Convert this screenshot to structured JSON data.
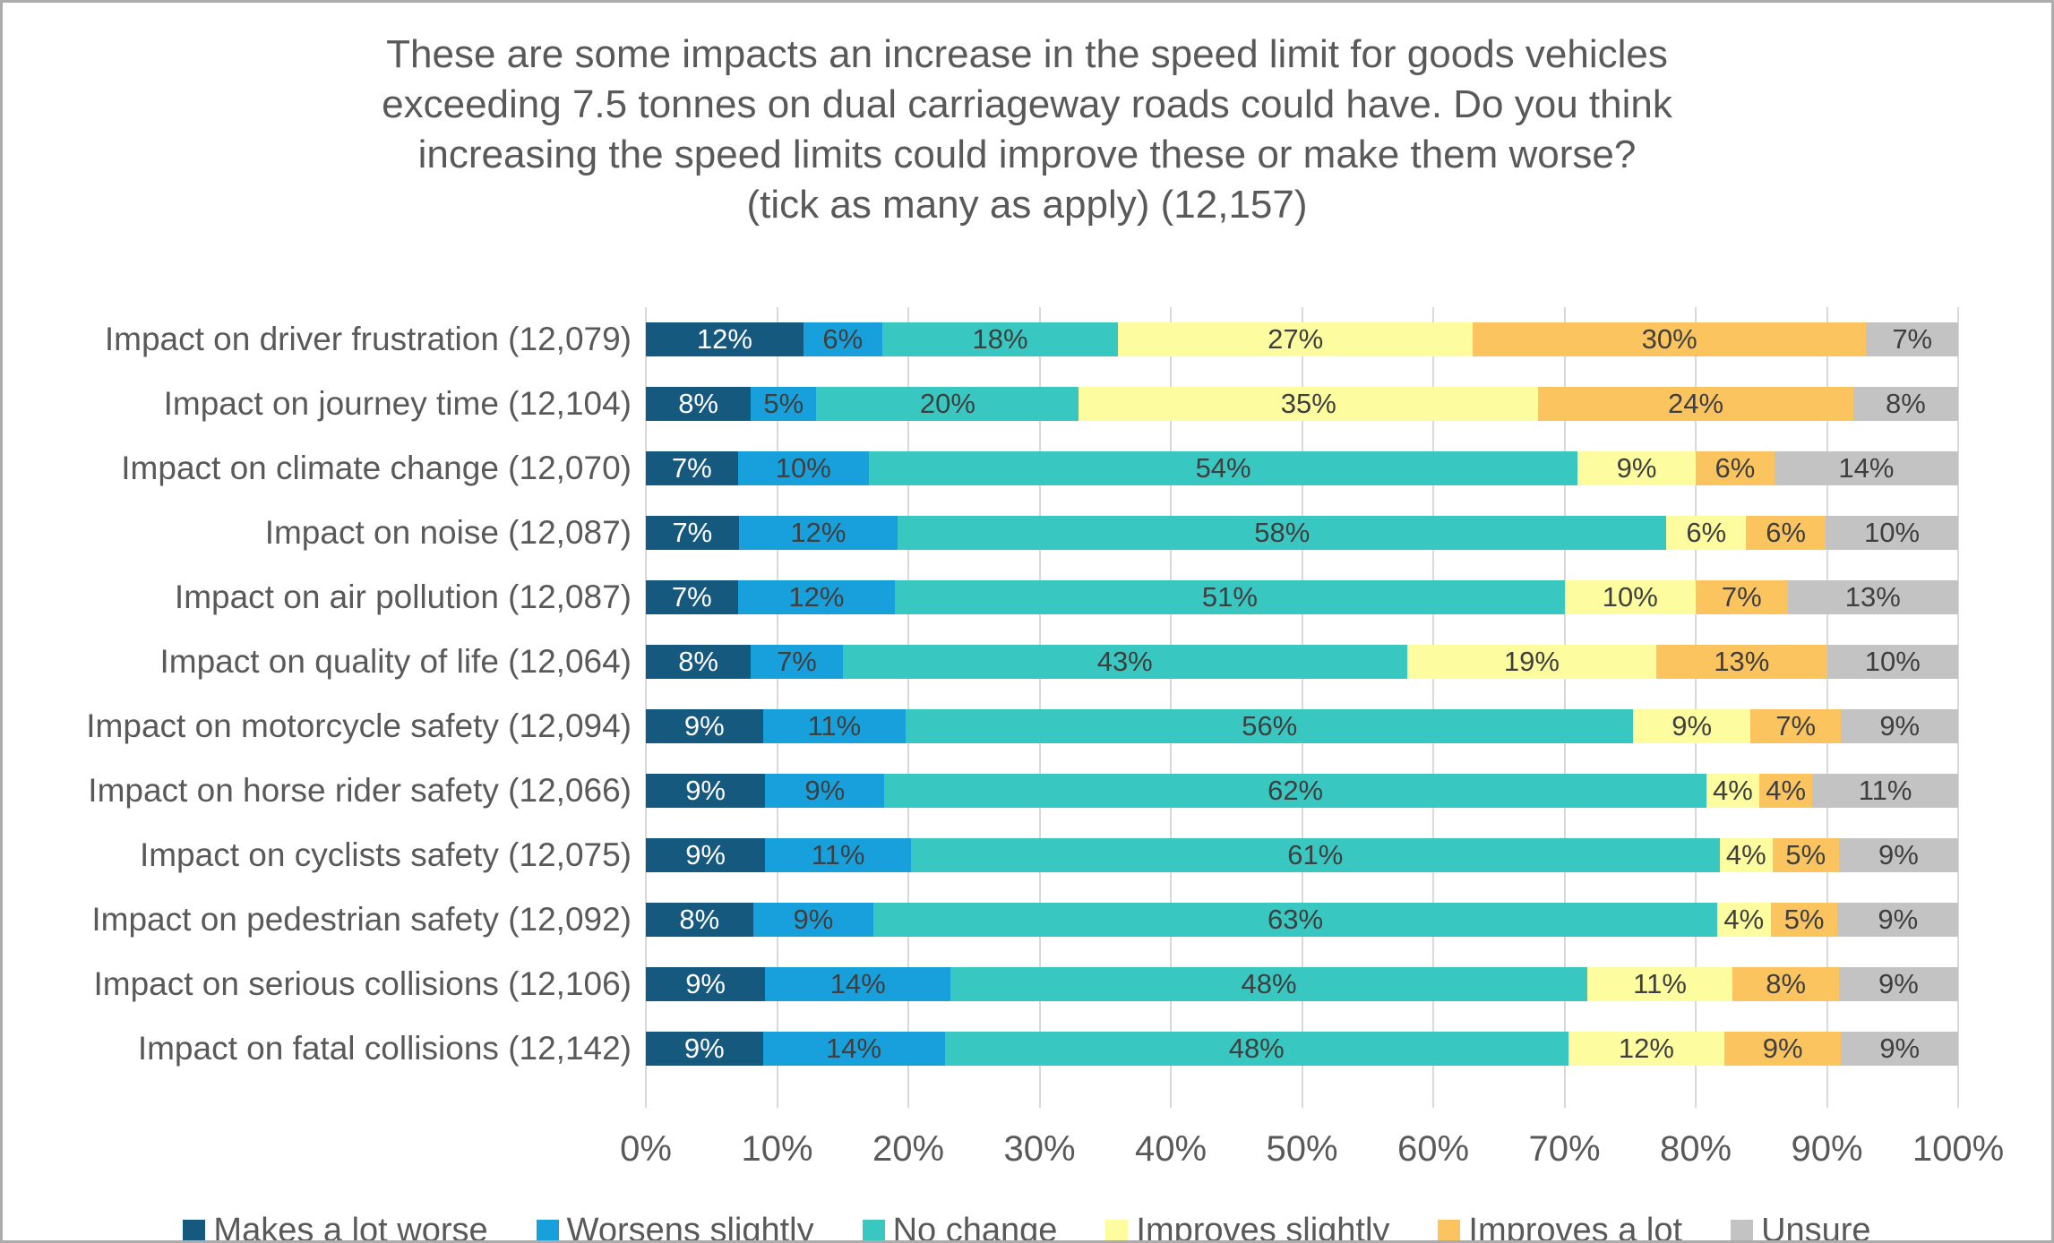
{
  "frame": {
    "background": "#FFFFFF",
    "border_color": "#ACACAC"
  },
  "chart_data": {
    "type": "bar",
    "orientation": "horizontal",
    "stacked": true,
    "title": "These are some impacts an increase in the speed limit for goods vehicles exceeding 7.5 tonnes on dual carriageway roads could have. Do you think increasing the speed limits could improve these or make them worse? (tick as many as apply) (12,157)",
    "title_lines": [
      "These are some impacts an increase in the speed limit for goods vehicles",
      "exceeding 7.5 tonnes on dual carriageway roads could have. Do you think",
      "increasing the speed limits could improve these or make them worse?",
      "(tick as many as apply) (12,157)"
    ],
    "categories": [
      "Impact on driver frustration (12,079)",
      "Impact on journey time (12,104)",
      "Impact on climate change (12,070)",
      "Impact on noise (12,087)",
      "Impact on air pollution (12,087)",
      "Impact on quality of life (12,064)",
      "Impact on motorcycle safety (12,094)",
      "Impact on horse rider safety (12,066)",
      "Impact on cyclists safety (12,075)",
      "Impact on pedestrian safety (12,092)",
      "Impact on serious collisions (12,106)",
      "Impact on fatal collisions (12,142)"
    ],
    "series": [
      {
        "name": "Makes a lot worse",
        "color": "#16597E",
        "label_color": "#FFFFFF",
        "values": [
          12,
          8,
          7,
          7,
          7,
          8,
          9,
          9,
          9,
          8,
          9,
          9
        ]
      },
      {
        "name": "Worsens slightly",
        "color": "#18A0DC",
        "label_color": "#3F3F3F",
        "values": [
          6,
          5,
          10,
          12,
          12,
          7,
          11,
          9,
          11,
          9,
          14,
          14
        ]
      },
      {
        "name": "No change",
        "color": "#38C7C1",
        "label_color": "#3F3F3F",
        "values": [
          18,
          20,
          54,
          58,
          51,
          43,
          56,
          62,
          61,
          63,
          48,
          48
        ]
      },
      {
        "name": "Improves slightly",
        "color": "#FDFC9F",
        "label_color": "#3F3F3F",
        "values": [
          27,
          35,
          9,
          6,
          10,
          19,
          9,
          4,
          4,
          4,
          11,
          12
        ]
      },
      {
        "name": "Improves a lot",
        "color": "#FBC45F",
        "label_color": "#3F3F3F",
        "values": [
          30,
          24,
          6,
          6,
          7,
          13,
          7,
          4,
          5,
          5,
          8,
          9
        ]
      },
      {
        "name": "Unsure",
        "color": "#C3C3C3",
        "label_color": "#3F3F3F",
        "values": [
          7,
          8,
          14,
          10,
          13,
          10,
          9,
          11,
          9,
          9,
          9,
          9
        ]
      }
    ],
    "value_suffix": "%",
    "x_ticks": [
      "0%",
      "10%",
      "20%",
      "30%",
      "40%",
      "50%",
      "60%",
      "70%",
      "80%",
      "90%",
      "100%"
    ],
    "xlim": [
      0,
      100
    ],
    "grid": true,
    "grid_color": "#D9D9D9",
    "text_color": "#595959",
    "legend_position": "bottom"
  }
}
